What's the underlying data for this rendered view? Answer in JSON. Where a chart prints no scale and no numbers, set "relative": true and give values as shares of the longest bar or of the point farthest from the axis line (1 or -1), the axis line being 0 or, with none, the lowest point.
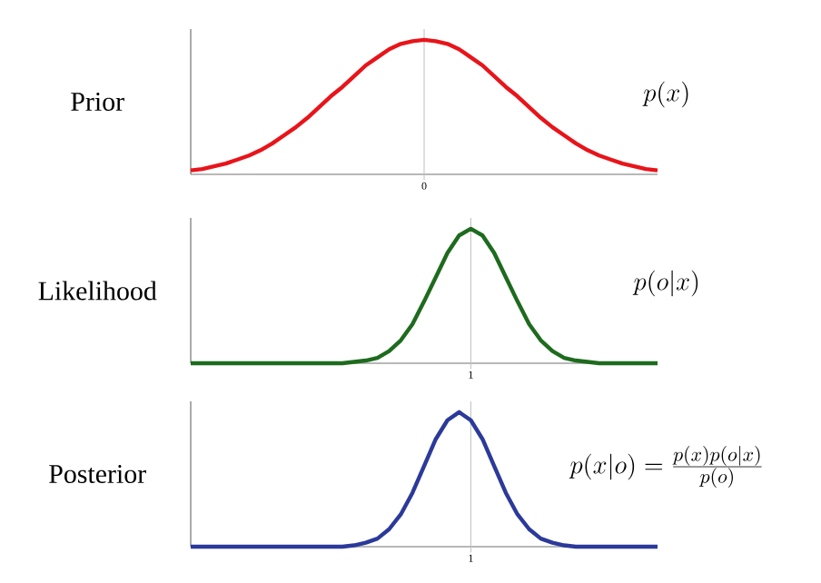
{
  "chart_data": [
    {
      "type": "line",
      "ylabel": "Prior",
      "annotations": [
        "p(x)",
        "0"
      ],
      "relative": true,
      "color": "#e8141a",
      "categories": [
        null,
        null,
        null,
        null,
        null,
        null,
        null,
        null,
        null,
        null,
        null,
        null,
        null,
        null,
        null,
        null,
        null,
        null,
        null,
        null,
        null,
        null,
        null,
        null,
        null,
        null,
        null,
        null,
        null,
        null,
        null,
        null,
        null,
        null,
        null,
        null,
        null,
        null,
        null,
        null,
        null
      ],
      "values": [
        0.03,
        0.04,
        0.06,
        0.08,
        0.11,
        0.14,
        0.18,
        0.23,
        0.29,
        0.35,
        0.42,
        0.5,
        0.58,
        0.65,
        0.73,
        0.81,
        0.87,
        0.93,
        0.97,
        0.99,
        1,
        0.99,
        0.97,
        0.93,
        0.87,
        0.81,
        0.73,
        0.65,
        0.58,
        0.5,
        0.42,
        0.35,
        0.29,
        0.23,
        0.18,
        0.14,
        0.11,
        0.08,
        0.06,
        0.04,
        0.03
      ]
    },
    {
      "type": "line",
      "ylabel": "Likelihood",
      "annotations": [
        "p(o|x)",
        "1"
      ],
      "relative": true,
      "color": "#1e6b1e",
      "categories": [
        null,
        null,
        null,
        null,
        null,
        null,
        null,
        null,
        null,
        null,
        null,
        null,
        null,
        null,
        null,
        null,
        null,
        null,
        null,
        null,
        null,
        null,
        null,
        null,
        null,
        null,
        null,
        null,
        null,
        null,
        null,
        null,
        null,
        null,
        null,
        null,
        null,
        null,
        null,
        null,
        null
      ],
      "values": [
        0,
        0,
        0,
        0,
        0,
        0,
        0,
        0,
        0,
        0,
        0,
        0,
        0,
        0,
        0.01,
        0.02,
        0.04,
        0.09,
        0.17,
        0.29,
        0.46,
        0.64,
        0.82,
        0.95,
        1,
        0.95,
        0.82,
        0.64,
        0.46,
        0.29,
        0.17,
        0.09,
        0.04,
        0.02,
        0.01,
        0,
        0,
        0,
        0,
        0,
        0
      ]
    },
    {
      "type": "line",
      "ylabel": "Posterior",
      "annotations": [
        "p(x|o) = \\frac{p(x)p(o|x)}{p(o)}",
        "1"
      ],
      "relative": true,
      "color": "#2b3a9a",
      "categories": [
        null,
        null,
        null,
        null,
        null,
        null,
        null,
        null,
        null,
        null,
        null,
        null,
        null,
        null,
        null,
        null,
        null,
        null,
        null,
        null,
        null,
        null,
        null,
        null,
        null,
        null,
        null,
        null,
        null,
        null,
        null,
        null,
        null,
        null,
        null,
        null,
        null,
        null,
        null,
        null,
        null
      ],
      "values": [
        0,
        0,
        0,
        0,
        0,
        0,
        0,
        0,
        0,
        0,
        0,
        0,
        0,
        0,
        0.01,
        0.03,
        0.06,
        0.13,
        0.24,
        0.4,
        0.6,
        0.8,
        0.94,
        1,
        0.94,
        0.8,
        0.6,
        0.4,
        0.24,
        0.13,
        0.06,
        0.03,
        0.01,
        0,
        0,
        0,
        0,
        0,
        0,
        0,
        0
      ]
    }
  ]
}
